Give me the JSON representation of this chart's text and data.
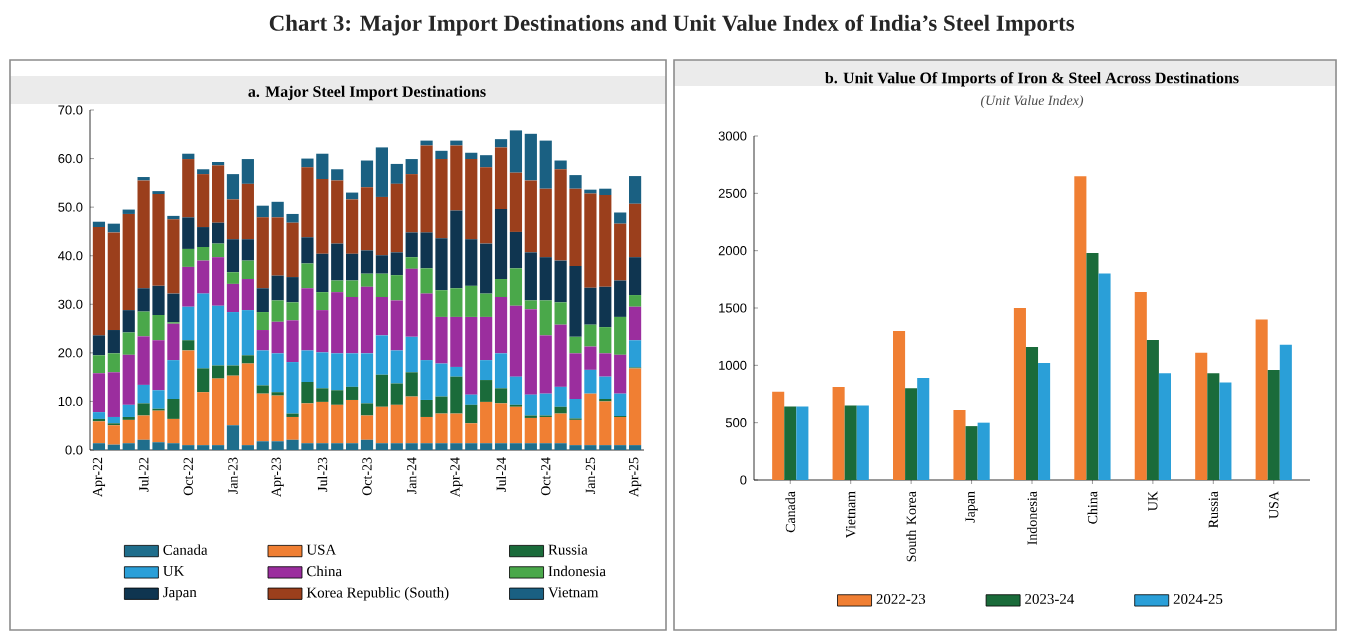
{
  "chart_data": [
    {
      "type": "bar",
      "title": "a. Major Steel Import Destinations",
      "annotations": [
        "Chart 3: Major Import Destinations and Unit Value Index of India’s Steel Imports"
      ],
      "stacked": true,
      "legend": "bottom",
      "categories": [
        "Apr-22",
        null,
        null,
        "Jul-22",
        null,
        null,
        "Oct-22",
        null,
        null,
        "Jan-23",
        null,
        null,
        "Apr-23",
        null,
        null,
        "Jul-23",
        null,
        null,
        "Oct-23",
        null,
        null,
        "Jan-24",
        null,
        null,
        "Apr-24",
        null,
        null,
        "Jul-24",
        null,
        null,
        "Oct-24",
        null,
        null,
        "Jan-25",
        null,
        null,
        "Apr-25"
      ],
      "ylim": [
        0,
        70
      ],
      "yticks": [
        {
          "value": 0,
          "label": "0.0"
        },
        {
          "value": 10,
          "label": "10.0"
        },
        {
          "value": 20,
          "label": "20.0"
        },
        {
          "value": 30,
          "label": "30.0"
        },
        {
          "value": 40,
          "label": "40.0"
        },
        {
          "value": 50,
          "label": "50.0"
        },
        {
          "value": 60,
          "label": "60.0"
        },
        {
          "value": 70,
          "label": "70.0"
        }
      ],
      "series": [
        {
          "name": "Canada",
          "color": "#1f6e8c",
          "values": [
            1.4,
            1.1,
            1.4,
            2.1,
            1.6,
            1.4,
            1.0,
            1.0,
            1.0,
            5.1,
            1.0,
            1.8,
            1.8,
            2.1,
            1.4,
            1.4,
            1.4,
            1.4,
            2.1,
            1.4,
            1.4,
            1.4,
            1.4,
            1.4,
            1.4,
            1.4,
            1.4,
            1.4,
            1.4,
            1.4,
            1.4,
            1.4,
            1.0,
            1.0,
            1.0,
            1.0,
            1.0
          ]
        },
        {
          "name": "USA",
          "color": "#f07f33",
          "values": [
            4.5,
            4.0,
            4.8,
            5.0,
            6.5,
            5.0,
            19.5,
            10.9,
            13.7,
            10.2,
            16.8,
            9.8,
            9.4,
            4.7,
            8.2,
            8.5,
            7.9,
            8.9,
            5.0,
            7.5,
            7.9,
            9.6,
            5.4,
            6.1,
            6.1,
            4.1,
            8.5,
            8.2,
            7.5,
            5.2,
            5.4,
            6.1,
            5.2,
            10.6,
            9.0,
            5.8,
            15.8
          ]
        },
        {
          "name": "Russia",
          "color": "#1a6b3a",
          "values": [
            0.5,
            0.4,
            0.6,
            2.5,
            0.4,
            4.1,
            2.1,
            4.9,
            2.7,
            2.1,
            1.7,
            1.7,
            0.7,
            0.7,
            4.4,
            2.8,
            3.0,
            2.7,
            2.5,
            6.6,
            4.4,
            5.0,
            3.5,
            3.5,
            7.6,
            3.8,
            4.5,
            3.1,
            0.4,
            0.5,
            0.3,
            1.4,
            0.3,
            null,
            0.5,
            0.2,
            0.2
          ]
        },
        {
          "name": "UK",
          "color": "#2a9fd8",
          "values": [
            1.4,
            1.3,
            2.5,
            3.8,
            3.8,
            8.0,
            6.9,
            15.4,
            12.3,
            11.0,
            9.3,
            7.2,
            8.0,
            10.6,
            6.5,
            7.4,
            7.6,
            6.9,
            10.3,
            8.1,
            6.8,
            7.3,
            8.2,
            6.8,
            2.0,
            2.1,
            4.1,
            7.2,
            5.8,
            4.3,
            4.5,
            4.1,
            4.0,
            4.9,
            4.6,
            4.6,
            5.6
          ]
        },
        {
          "name": "China",
          "color": "#9b2e9e",
          "values": [
            8.0,
            9.2,
            10.3,
            10.0,
            10.3,
            7.5,
            8.2,
            6.8,
            10.0,
            5.8,
            6.4,
            4.2,
            6.5,
            8.6,
            12.8,
            8.7,
            12.6,
            11.6,
            13.7,
            7.9,
            10.3,
            14.0,
            13.7,
            9.6,
            10.3,
            16.0,
            8.9,
            11.6,
            14.6,
            17.6,
            12.0,
            12.8,
            9.4,
            4.8,
            4.8,
            8.0,
            6.9
          ]
        },
        {
          "name": "Indonesia",
          "color": "#4aa84a",
          "values": [
            3.7,
            3.9,
            4.6,
            5.1,
            5.2,
            0.3,
            3.7,
            2.8,
            2.8,
            2.4,
            3.8,
            3.7,
            4.4,
            3.7,
            5.1,
            3.7,
            2.4,
            3.4,
            2.7,
            4.8,
            5.2,
            2.4,
            5.2,
            5.5,
            5.9,
            6.4,
            4.8,
            3.7,
            7.7,
            1.8,
            7.2,
            4.6,
            3.4,
            4.5,
            5.4,
            7.8,
            2.4
          ]
        },
        {
          "name": "Japan",
          "color": "#0f3550",
          "values": [
            4.1,
            4.8,
            4.6,
            4.8,
            6.0,
            5.9,
            6.5,
            4.1,
            4.3,
            6.8,
            4.4,
            4.9,
            5.1,
            5.2,
            5.4,
            7.9,
            7.6,
            5.5,
            4.8,
            3.8,
            4.7,
            5.1,
            7.4,
            10.7,
            16.0,
            9.6,
            10.3,
            14.4,
            7.5,
            9.9,
            8.9,
            8.6,
            14.6,
            7.6,
            8.3,
            7.5,
            7.8
          ]
        },
        {
          "name": "Korea Republic (South)",
          "color": "#9b3f1c",
          "values": [
            22.3,
            20.1,
            19.8,
            22.2,
            18.9,
            15.3,
            12.0,
            10.9,
            11.8,
            8.2,
            11.4,
            14.6,
            12.0,
            11.2,
            14.4,
            15.4,
            13.0,
            11.2,
            13.0,
            12.0,
            14.1,
            12.0,
            17.9,
            16.3,
            13.4,
            16.5,
            15.7,
            12.7,
            12.2,
            14.8,
            14.1,
            18.8,
            15.9,
            19.4,
            18.9,
            11.7,
            11.0
          ]
        },
        {
          "name": "Vietnam",
          "color": "#1a6082",
          "values": [
            1.1,
            1.8,
            0.9,
            0.7,
            0.6,
            0.7,
            1.1,
            1.0,
            0.7,
            5.2,
            5.1,
            2.4,
            3.2,
            1.8,
            1.8,
            5.2,
            2.3,
            1.4,
            5.5,
            10.2,
            4.1,
            3.1,
            1.0,
            1.7,
            1.0,
            1.3,
            2.5,
            1.7,
            8.7,
            9.6,
            9.9,
            1.8,
            2.8,
            0.8,
            1.3,
            2.3,
            5.7
          ]
        }
      ]
    },
    {
      "type": "bar",
      "title": "b. Unit Value Of Imports of Iron & Steel Across Destinations",
      "subtitle": "(Unit Value Index)",
      "legend": "bottom",
      "categories": [
        "Canada",
        "Vietnam",
        "South Korea",
        "Japan",
        "Indonesia",
        "China",
        "UK",
        "Russia",
        "USA"
      ],
      "ylim": [
        0,
        3000
      ],
      "yticks": [
        0,
        500,
        1000,
        1500,
        2000,
        2500,
        3000
      ],
      "series": [
        {
          "name": "2022-23",
          "color": "#f07f33",
          "values": [
            770,
            810,
            1300,
            610,
            1500,
            2650,
            1640,
            1110,
            1400
          ]
        },
        {
          "name": "2023-24",
          "color": "#1a6b3a",
          "values": [
            640,
            650,
            800,
            470,
            1160,
            1980,
            1220,
            930,
            960
          ]
        },
        {
          "name": "2024-25",
          "color": "#2a9fd8",
          "values": [
            640,
            650,
            890,
            500,
            1020,
            1800,
            930,
            850,
            1180
          ]
        }
      ]
    }
  ]
}
